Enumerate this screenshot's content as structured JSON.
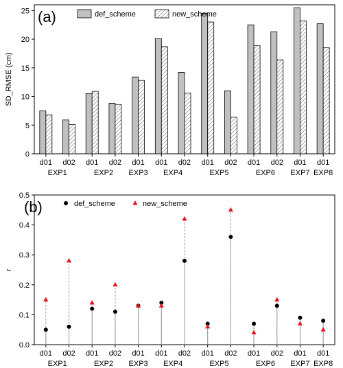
{
  "chart_data": [
    {
      "type": "bar",
      "panel_label": "(a)",
      "ylabel": "SD_RMSE (cm)",
      "ylim": [
        0,
        26
      ],
      "yticks": [
        0,
        5,
        10,
        15,
        20,
        25
      ],
      "groups": [
        {
          "name": "EXP1",
          "domains": [
            "d01",
            "d02"
          ]
        },
        {
          "name": "EXP2",
          "domains": [
            "d01",
            "d02"
          ]
        },
        {
          "name": "EXP3",
          "domains": [
            "d01"
          ]
        },
        {
          "name": "EXP4",
          "domains": [
            "d01",
            "d02"
          ]
        },
        {
          "name": "EXP5",
          "domains": [
            "d01",
            "d02"
          ]
        },
        {
          "name": "EXP6",
          "domains": [
            "d01",
            "d02"
          ]
        },
        {
          "name": "EXP7",
          "domains": [
            "d01"
          ]
        },
        {
          "name": "EXP8",
          "domains": [
            "d01"
          ]
        }
      ],
      "categories": [
        "EXP1 d01",
        "EXP1 d02",
        "EXP2 d01",
        "EXP2 d02",
        "EXP3 d01",
        "EXP4 d01",
        "EXP4 d02",
        "EXP5 d01",
        "EXP5 d02",
        "EXP6 d01",
        "EXP6 d02",
        "EXP7 d01",
        "EXP8 d01"
      ],
      "series": [
        {
          "name": "def_scheme",
          "fill": "#c0c0c0",
          "values": [
            7.5,
            5.9,
            10.5,
            8.8,
            13.4,
            20.1,
            14.2,
            24.5,
            11.0,
            22.5,
            21.3,
            25.5,
            22.7
          ]
        },
        {
          "name": "new_scheme",
          "fill": "hatch",
          "values": [
            6.8,
            5.1,
            10.9,
            8.6,
            12.8,
            18.7,
            10.6,
            23.0,
            6.4,
            18.9,
            16.4,
            23.2,
            18.5
          ]
        }
      ],
      "legend": "top"
    },
    {
      "type": "scatter",
      "panel_label": "(b)",
      "ylabel": "r",
      "ylim": [
        0,
        0.5
      ],
      "yticks": [
        0.0,
        0.1,
        0.2,
        0.3,
        0.4,
        0.5
      ],
      "groups": [
        {
          "name": "EXP1",
          "domains": [
            "d01",
            "d02"
          ]
        },
        {
          "name": "EXP2",
          "domains": [
            "d01",
            "d02"
          ]
        },
        {
          "name": "EXP3",
          "domains": [
            "d01"
          ]
        },
        {
          "name": "EXP4",
          "domains": [
            "d01",
            "d02"
          ]
        },
        {
          "name": "EXP5",
          "domains": [
            "d01",
            "d02"
          ]
        },
        {
          "name": "EXP6",
          "domains": [
            "d01",
            "d02"
          ]
        },
        {
          "name": "EXP7",
          "domains": [
            "d01"
          ]
        },
        {
          "name": "EXP8",
          "domains": [
            "d01"
          ]
        }
      ],
      "categories": [
        "EXP1 d01",
        "EXP1 d02",
        "EXP2 d01",
        "EXP2 d02",
        "EXP3 d01",
        "EXP4 d01",
        "EXP4 d02",
        "EXP5 d01",
        "EXP5 d02",
        "EXP6 d01",
        "EXP6 d02",
        "EXP7 d01",
        "EXP8 d01"
      ],
      "series": [
        {
          "name": "def_scheme",
          "marker": "circle",
          "color": "#000000",
          "values": [
            0.05,
            0.06,
            0.12,
            0.11,
            0.13,
            0.14,
            0.28,
            0.07,
            0.36,
            0.07,
            0.13,
            0.09,
            0.08
          ]
        },
        {
          "name": "new_scheme",
          "marker": "triangle",
          "color": "#e8141c",
          "values": [
            0.15,
            0.28,
            0.14,
            0.2,
            0.13,
            0.13,
            0.42,
            0.06,
            0.45,
            0.04,
            0.15,
            0.07,
            0.05
          ]
        }
      ],
      "legend": "top"
    }
  ]
}
